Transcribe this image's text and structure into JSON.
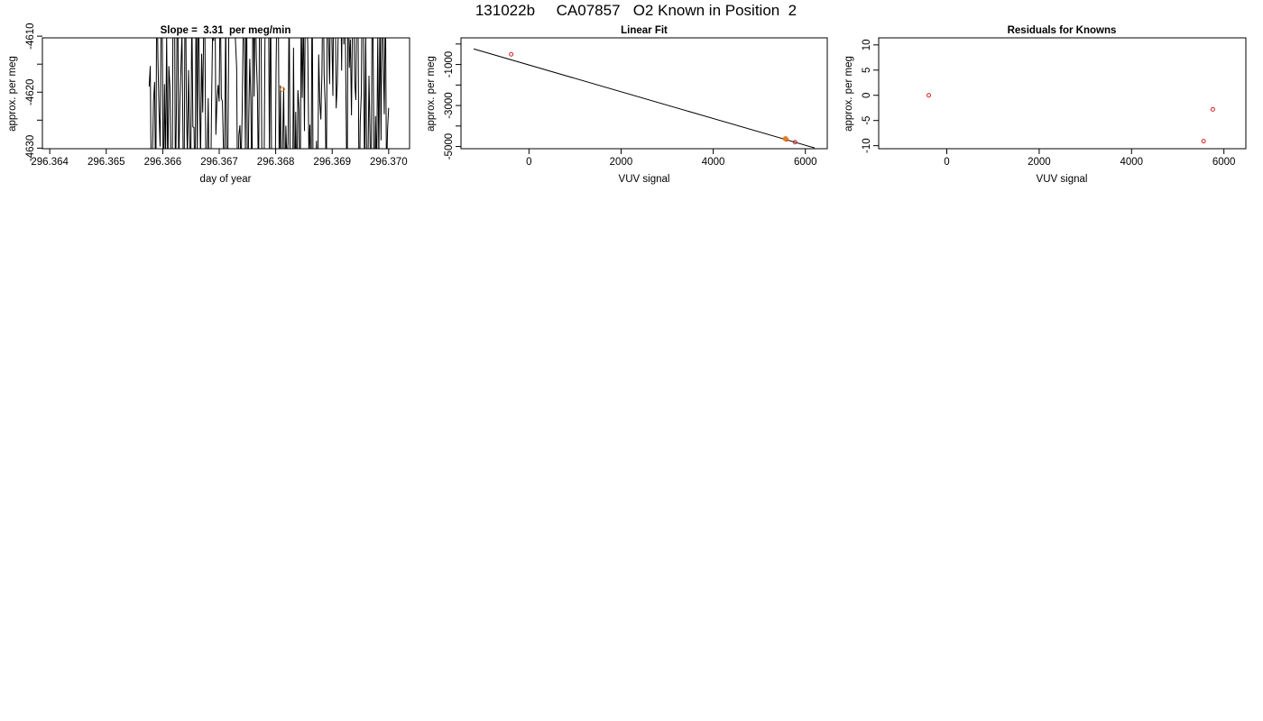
{
  "suptitle": "131022b     CA07857   O2 Known in Position  2",
  "colors": {
    "frame": "#000000",
    "series": "#000000",
    "known_point": "#d62020",
    "highlight_point": "#e08020"
  },
  "chart_data": [
    {
      "type": "line",
      "title": "Slope =  3.31  per meg/min",
      "xlabel": "day of year",
      "ylabel": "approx. per meg",
      "xlim": [
        296.36387,
        296.37037
      ],
      "ylim": [
        -4630.1,
        -4610.3
      ],
      "xticks": [
        "296.364",
        "296.365",
        "296.366",
        "296.367",
        "296.368",
        "296.369",
        "296.370"
      ],
      "xtick_values": [
        296.364,
        296.365,
        296.366,
        296.367,
        296.368,
        296.369,
        296.37
      ],
      "yticks": [
        "-4610",
        "-4620",
        "-4630"
      ],
      "ytick_values": [
        -4610,
        -4620,
        -4630
      ],
      "x_start": 296.36576,
      "x_end": 296.37,
      "n_points": 220,
      "trend_intercept": -4618.5,
      "trend_slope_per_day": 4766,
      "noise_amplitude": 26,
      "highlight_point": {
        "x": 296.36812,
        "y": -4619.5
      }
    },
    {
      "type": "scatter",
      "title": "Linear Fit",
      "xlabel": "VUV signal",
      "ylabel": "approx. per meg",
      "xlim": [
        -1475,
        6475
      ],
      "ylim": [
        -5107,
        300
      ],
      "xticks": [
        "0",
        "2000",
        "4000",
        "6000"
      ],
      "xtick_values": [
        0,
        2000,
        4000,
        6000
      ],
      "yticks": [
        "-1000",
        "-3000",
        "-5000"
      ],
      "ytick_values": [
        -1000,
        -3000,
        -5000
      ],
      "points": [
        {
          "x": -385,
          "y": -503
        },
        {
          "x": 5560,
          "y": -4630
        },
        {
          "x": 5585,
          "y": -4655
        },
        {
          "x": 5775,
          "y": -4790
        }
      ],
      "highlight_point": {
        "x": 5570,
        "y": -4620
      },
      "fit_line": {
        "x": [
          -1200,
          6200
        ],
        "y": [
          -240,
          -5070
        ]
      }
    },
    {
      "type": "scatter",
      "title": "Residuals for Knowns",
      "xlabel": "VUV signal",
      "ylabel": "approx. per meg",
      "xlim": [
        -1475,
        6475
      ],
      "ylim": [
        -10.6,
        11.4
      ],
      "xticks": [
        "0",
        "2000",
        "4000",
        "6000"
      ],
      "xtick_values": [
        0,
        2000,
        4000,
        6000
      ],
      "yticks": [
        "-10",
        "-5",
        "0",
        "5",
        "10"
      ],
      "ytick_values": [
        -10,
        -5,
        0,
        5,
        10
      ],
      "points": [
        {
          "x": -390,
          "y": 0.0
        },
        {
          "x": 5560,
          "y": -9.1
        },
        {
          "x": 5760,
          "y": -2.8
        }
      ]
    }
  ]
}
